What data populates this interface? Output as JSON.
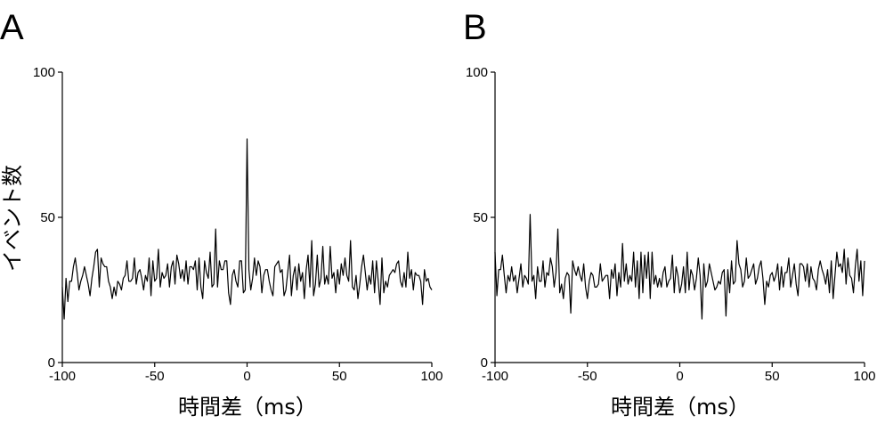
{
  "chart_data": [
    {
      "type": "line",
      "panel_label": "A",
      "xlabel": "時間差（ms）",
      "ylabel": "イベント数",
      "xlim": [
        -100,
        100
      ],
      "ylim": [
        0,
        100
      ],
      "xticks": [
        "-100",
        "-50",
        "0",
        "50",
        "100"
      ],
      "yticks": [
        "0",
        "50",
        "100"
      ],
      "grid": false,
      "series": [
        {
          "x": [
            -100,
            -99,
            -98,
            -97,
            -96,
            -95,
            -94,
            -93,
            -92,
            -91,
            -90,
            -89,
            -88,
            -87,
            -86,
            -85,
            -84,
            -83,
            -82,
            -81,
            -80,
            -79,
            -78,
            -77,
            -76,
            -75,
            -74,
            -73,
            -72,
            -71,
            -70,
            -69,
            -68,
            -67,
            -66,
            -65,
            -64,
            -63,
            -62,
            -61,
            -60,
            -59,
            -58,
            -57,
            -56,
            -55,
            -54,
            -53,
            -52,
            -51,
            -50,
            -49,
            -48,
            -47,
            -46,
            -45,
            -44,
            -43,
            -42,
            -41,
            -40,
            -39,
            -38,
            -37,
            -36,
            -35,
            -34,
            -33,
            -32,
            -31,
            -30,
            -29,
            -28,
            -27,
            -26,
            -25,
            -24,
            -23,
            -22,
            -21,
            -20,
            -19,
            -18,
            -17,
            -16,
            -15,
            -14,
            -13,
            -12,
            -11,
            -10,
            -9,
            -8,
            -7,
            -6,
            -5,
            -4,
            -3,
            -2,
            -1,
            0,
            1,
            2,
            3,
            4,
            5,
            6,
            7,
            8,
            9,
            10,
            11,
            12,
            13,
            14,
            15,
            16,
            17,
            18,
            19,
            20,
            21,
            22,
            23,
            24,
            25,
            26,
            27,
            28,
            29,
            30,
            31,
            32,
            33,
            34,
            35,
            36,
            37,
            38,
            39,
            40,
            41,
            42,
            43,
            44,
            45,
            46,
            47,
            48,
            49,
            50,
            51,
            52,
            53,
            54,
            55,
            56,
            57,
            58,
            59,
            60,
            61,
            62,
            63,
            64,
            65,
            66,
            67,
            68,
            69,
            70,
            71,
            72,
            73,
            74,
            75,
            76,
            77,
            78,
            79,
            80,
            81,
            82,
            83,
            84,
            85,
            86,
            87,
            88,
            89,
            90,
            91,
            92,
            93,
            94,
            95,
            96,
            97,
            98,
            99,
            100
          ],
          "values": [
            26,
            15,
            29,
            21,
            28,
            28,
            33,
            36,
            31,
            25,
            28,
            30,
            33,
            30,
            27,
            23,
            29,
            33,
            38,
            39,
            26,
            36,
            34,
            33,
            33,
            28,
            26,
            22,
            26,
            23,
            28,
            27,
            25,
            29,
            30,
            35,
            28,
            28,
            29,
            36,
            27,
            31,
            32,
            29,
            25,
            30,
            28,
            36,
            23,
            35,
            28,
            29,
            39,
            26,
            31,
            29,
            30,
            34,
            26,
            33,
            35,
            27,
            37,
            34,
            29,
            32,
            28,
            35,
            27,
            33,
            33,
            32,
            35,
            25,
            36,
            26,
            22,
            35,
            31,
            29,
            38,
            26,
            27,
            46,
            26,
            35,
            32,
            32,
            35,
            35,
            24,
            20,
            30,
            32,
            28,
            26,
            35,
            35,
            24,
            25,
            77,
            32,
            25,
            29,
            36,
            30,
            35,
            33,
            24,
            30,
            32,
            32,
            28,
            25,
            23,
            33,
            34,
            35,
            31,
            32,
            23,
            25,
            31,
            37,
            23,
            30,
            33,
            25,
            34,
            28,
            31,
            22,
            32,
            37,
            26,
            42,
            23,
            27,
            37,
            26,
            29,
            40,
            27,
            30,
            27,
            40,
            29,
            31,
            24,
            32,
            27,
            34,
            30,
            36,
            30,
            28,
            42,
            26,
            25,
            30,
            22,
            27,
            33,
            37,
            31,
            25,
            30,
            27,
            35,
            24,
            35,
            28,
            20,
            36,
            24,
            28,
            26,
            30,
            31,
            32,
            31,
            34,
            35,
            28,
            26,
            31,
            26,
            38,
            29,
            32,
            25,
            31,
            30,
            30,
            28,
            20,
            32,
            28,
            29,
            26,
            25
          ]
        }
      ]
    },
    {
      "type": "line",
      "panel_label": "B",
      "xlabel": "時間差（ms）",
      "ylabel": "",
      "xlim": [
        -100,
        100
      ],
      "ylim": [
        0,
        100
      ],
      "xticks": [
        "-100",
        "-50",
        "0",
        "50",
        "100"
      ],
      "yticks": [
        "0",
        "50",
        "100"
      ],
      "grid": false,
      "series": [
        {
          "x": [
            -100,
            -99,
            -98,
            -97,
            -96,
            -95,
            -94,
            -93,
            -92,
            -91,
            -90,
            -89,
            -88,
            -87,
            -86,
            -85,
            -84,
            -83,
            -82,
            -81,
            -80,
            -79,
            -78,
            -77,
            -76,
            -75,
            -74,
            -73,
            -72,
            -71,
            -70,
            -69,
            -68,
            -67,
            -66,
            -65,
            -64,
            -63,
            -62,
            -61,
            -60,
            -59,
            -58,
            -57,
            -56,
            -55,
            -54,
            -53,
            -52,
            -51,
            -50,
            -49,
            -48,
            -47,
            -46,
            -45,
            -44,
            -43,
            -42,
            -41,
            -40,
            -39,
            -38,
            -37,
            -36,
            -35,
            -34,
            -33,
            -32,
            -31,
            -30,
            -29,
            -28,
            -27,
            -26,
            -25,
            -24,
            -23,
            -22,
            -21,
            -20,
            -19,
            -18,
            -17,
            -16,
            -15,
            -14,
            -13,
            -12,
            -11,
            -10,
            -9,
            -8,
            -7,
            -6,
            -5,
            -4,
            -3,
            -2,
            -1,
            0,
            1,
            2,
            3,
            4,
            5,
            6,
            7,
            8,
            9,
            10,
            11,
            12,
            13,
            14,
            15,
            16,
            17,
            18,
            19,
            20,
            21,
            22,
            23,
            24,
            25,
            26,
            27,
            28,
            29,
            30,
            31,
            32,
            33,
            34,
            35,
            36,
            37,
            38,
            39,
            40,
            41,
            42,
            43,
            44,
            45,
            46,
            47,
            48,
            49,
            50,
            51,
            52,
            53,
            54,
            55,
            56,
            57,
            58,
            59,
            60,
            61,
            62,
            63,
            64,
            65,
            66,
            67,
            68,
            69,
            70,
            71,
            72,
            73,
            74,
            75,
            76,
            77,
            78,
            79,
            80,
            81,
            82,
            83,
            84,
            85,
            86,
            87,
            88,
            89,
            90,
            91,
            92,
            93,
            94,
            95,
            96,
            97,
            98,
            99,
            100
          ],
          "values": [
            38,
            23,
            32,
            32,
            37,
            30,
            24,
            30,
            28,
            33,
            28,
            30,
            24,
            29,
            34,
            26,
            30,
            29,
            27,
            51,
            28,
            30,
            22,
            33,
            28,
            28,
            35,
            26,
            31,
            30,
            36,
            33,
            26,
            31,
            46,
            24,
            27,
            22,
            29,
            31,
            30,
            17,
            35,
            32,
            30,
            33,
            30,
            28,
            34,
            26,
            22,
            28,
            31,
            30,
            26,
            26,
            27,
            34,
            28,
            29,
            30,
            30,
            22,
            32,
            29,
            34,
            23,
            31,
            26,
            41,
            28,
            34,
            27,
            30,
            28,
            38,
            26,
            35,
            22,
            38,
            24,
            37,
            29,
            38,
            22,
            38,
            27,
            30,
            26,
            29,
            26,
            31,
            33,
            26,
            28,
            29,
            37,
            24,
            33,
            30,
            24,
            27,
            33,
            24,
            38,
            25,
            32,
            30,
            25,
            29,
            36,
            30,
            15,
            34,
            26,
            28,
            34,
            31,
            28,
            25,
            26,
            28,
            27,
            31,
            32,
            16,
            32,
            24,
            35,
            27,
            28,
            42,
            34,
            32,
            26,
            28,
            36,
            29,
            30,
            32,
            34,
            27,
            29,
            33,
            35,
            29,
            20,
            28,
            26,
            30,
            31,
            28,
            30,
            34,
            25,
            33,
            26,
            31,
            31,
            36,
            26,
            30,
            34,
            27,
            23,
            34,
            34,
            33,
            28,
            34,
            26,
            33,
            29,
            28,
            25,
            32,
            35,
            32,
            30,
            27,
            32,
            24,
            35,
            22,
            30,
            38,
            33,
            34,
            31,
            39,
            27,
            36,
            30,
            29,
            24,
            33,
            39,
            28,
            35,
            23,
            35
          ]
        }
      ]
    }
  ]
}
